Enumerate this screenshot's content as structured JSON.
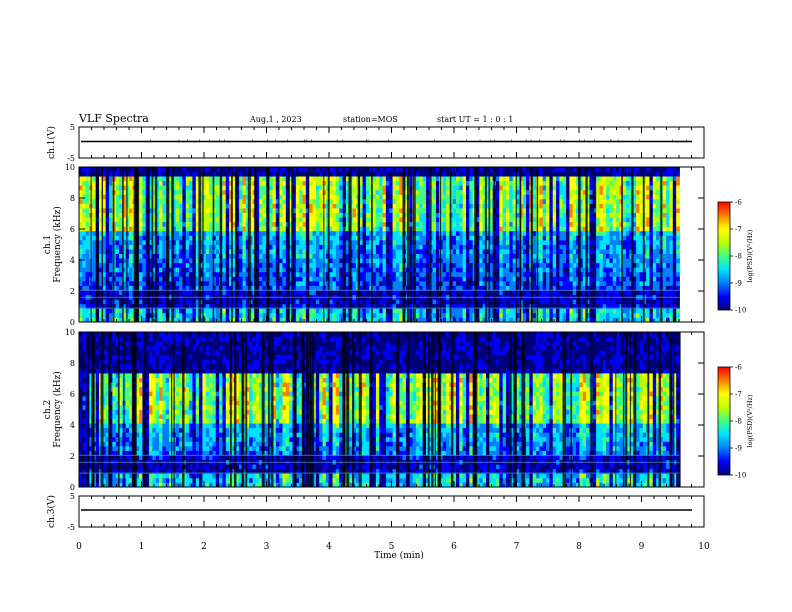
{
  "header": {
    "title": "VLF Spectra",
    "date": "Aug.1 , 2023",
    "station": "station=MOS",
    "start": "start UT = 1 : 0 : 1"
  },
  "colors": {
    "colormap": [
      "#00007a",
      "#0000ff",
      "#0080ff",
      "#00e0ff",
      "#40ff80",
      "#c0ff00",
      "#ffff00",
      "#ff8000",
      "#ff0000",
      "#ffffff"
    ],
    "background": "#ffffff",
    "waveform": "#000000"
  },
  "chart_data": [
    {
      "type": "line",
      "name": "ch1-waveform",
      "ylabel": "ch.1(V)",
      "ylim": [
        -5,
        5
      ],
      "yticks": [
        "5",
        "-5"
      ],
      "x": [
        0,
        10
      ],
      "values": [
        0,
        0
      ]
    },
    {
      "type": "heatmap",
      "name": "ch1-spectrogram",
      "ylabel_line1": "ch.1",
      "ylabel_line2": "Frequency (kHz)",
      "ylim": [
        0,
        10
      ],
      "yticks": [
        "0",
        "2",
        "4",
        "6",
        "8",
        "10"
      ],
      "xlim": [
        0,
        10
      ],
      "data_extent_min": 9.8,
      "colorbar": {
        "label": "log(PSD)(V²/Hz)",
        "range": [
          -10,
          -6
        ],
        "ticks": [
          "-6",
          "-7",
          "-8",
          "-9",
          "-10"
        ]
      }
    },
    {
      "type": "heatmap",
      "name": "ch2-spectrogram",
      "ylabel_line1": "ch.2",
      "ylabel_line2": "Frequency (kHz)",
      "ylim": [
        0,
        10
      ],
      "yticks": [
        "0",
        "2",
        "4",
        "6",
        "8",
        "10"
      ],
      "xlim": [
        0,
        10
      ],
      "data_extent_min": 9.8,
      "colorbar": {
        "label": "log(PSD)(V²/Hz)",
        "range": [
          -10,
          -6
        ],
        "ticks": [
          "-6",
          "-7",
          "-8",
          "-9",
          "-10"
        ]
      }
    },
    {
      "type": "line",
      "name": "ch3-waveform",
      "ylabel": "ch.3(V)",
      "ylim": [
        -5,
        5
      ],
      "yticks": [
        "5",
        "-5"
      ],
      "x": [
        0,
        10
      ],
      "values": [
        0,
        0
      ]
    }
  ],
  "xaxis": {
    "label": "Time (min)",
    "ticks": [
      "0",
      "1",
      "2",
      "3",
      "4",
      "5",
      "6",
      "7",
      "8",
      "9",
      "10"
    ]
  }
}
